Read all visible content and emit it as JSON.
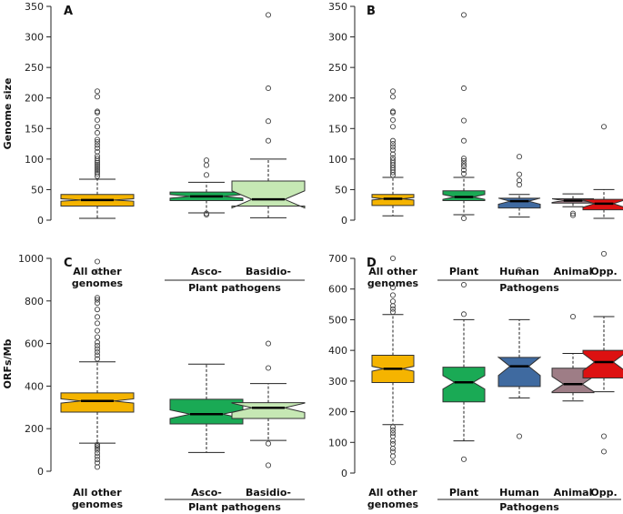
{
  "chart_data": [
    {
      "panel": "A",
      "type": "boxplot",
      "ylabel": "Genome size",
      "ylim": [
        0,
        350
      ],
      "yticks": [
        0,
        50,
        100,
        150,
        200,
        250,
        300,
        350
      ],
      "categories": [
        "All other genomes",
        "Asco-",
        "Basidio-"
      ],
      "category_lines": [
        [
          "All other",
          "genomes"
        ],
        [
          "Asco-"
        ],
        [
          "Basidio-"
        ]
      ],
      "group_label": "Plant pathogens",
      "group_span": [
        1,
        2
      ],
      "boxes": [
        {
          "name": "All other genomes",
          "color": "#f5b400",
          "q1": 23,
          "median": 33,
          "q3": 42,
          "notch": 2,
          "whisker_low": 3,
          "whisker_high": 67,
          "outliers": [
            72,
            76,
            79,
            82,
            85,
            88,
            91,
            94,
            97,
            101,
            105,
            112,
            118,
            123,
            128,
            132,
            143,
            153,
            164,
            176,
            178,
            202,
            211
          ]
        },
        {
          "name": "Asco-",
          "color": "#1aaa55",
          "q1": 32,
          "median": 39,
          "q3": 46,
          "notch": 3,
          "whisker_low": 12,
          "whisker_high": 62,
          "outliers": [
            9,
            11,
            74,
            90,
            98
          ]
        },
        {
          "name": "Basidio-",
          "color": "#c6e8b4",
          "q1": 23,
          "median": 34,
          "q3": 64,
          "notch": 14,
          "whisker_low": 4,
          "whisker_high": 100,
          "outliers": [
            130,
            162,
            216,
            336
          ]
        }
      ]
    },
    {
      "panel": "B",
      "type": "boxplot",
      "ylabel": "",
      "ylim": [
        0,
        350
      ],
      "yticks": [
        0,
        50,
        100,
        150,
        200,
        250,
        300,
        350
      ],
      "categories": [
        "All other genomes",
        "Plant",
        "Human",
        "Animal",
        "Opp."
      ],
      "category_lines": [
        [
          "All other",
          "genomes"
        ],
        [
          "Plant"
        ],
        [
          "Human"
        ],
        [
          "Animal"
        ],
        [
          "Opp."
        ]
      ],
      "group_label": "Pathogens",
      "group_span": [
        1,
        4
      ],
      "boxes": [
        {
          "name": "All other genomes",
          "color": "#f5b400",
          "q1": 24,
          "median": 35,
          "q3": 42,
          "notch": 2,
          "whisker_low": 7,
          "whisker_high": 70,
          "outliers": [
            74,
            78,
            82,
            86,
            90,
            94,
            98,
            102,
            108,
            115,
            120,
            125,
            130,
            153,
            164,
            176,
            178,
            202,
            211
          ]
        },
        {
          "name": "Plant",
          "color": "#1aaa55",
          "q1": 32,
          "median": 38,
          "q3": 48,
          "notch": 4,
          "whisker_low": 9,
          "whisker_high": 70,
          "outliers": [
            3,
            76,
            82,
            88,
            92,
            97,
            101,
            130,
            163,
            216,
            336
          ]
        },
        {
          "name": "Human",
          "color": "#3f6aa0",
          "q1": 20,
          "median": 31,
          "q3": 36,
          "notch": 5,
          "whisker_low": 5,
          "whisker_high": 42,
          "outliers": [
            58,
            65,
            75,
            104
          ]
        },
        {
          "name": "Animal",
          "color": "#9e7d86",
          "q1": 28,
          "median": 32,
          "q3": 35,
          "notch": 3,
          "whisker_low": 22,
          "whisker_high": 43,
          "outliers": [
            8,
            11
          ]
        },
        {
          "name": "Opp.",
          "color": "#dd1111",
          "q1": 17,
          "median": 27,
          "q3": 34,
          "notch": 6,
          "whisker_low": 3,
          "whisker_high": 50,
          "outliers": [
            153
          ]
        }
      ]
    },
    {
      "panel": "C",
      "type": "boxplot",
      "ylabel": "ORFs/Mb",
      "ylim": [
        0,
        1000
      ],
      "yticks": [
        0,
        200,
        400,
        600,
        800,
        1000
      ],
      "categories": [
        "All other genomes",
        "Asco-",
        "Basidio-"
      ],
      "category_lines": [
        [
          "All other",
          "genomes"
        ],
        [
          "Asco-"
        ],
        [
          "Basidio-"
        ]
      ],
      "group_label": "Plant pathogens",
      "group_span": [
        1,
        2
      ],
      "boxes": [
        {
          "name": "All other genomes",
          "color": "#f5b400",
          "q1": 278,
          "median": 330,
          "q3": 368,
          "notch": 10,
          "whisker_low": 132,
          "whisker_high": 514,
          "outliers": [
            20,
            40,
            55,
            70,
            85,
            100,
            110,
            118,
            125,
            528,
            545,
            560,
            575,
            590,
            605,
            630,
            660,
            695,
            725,
            760,
            790,
            805,
            815,
            938,
            985
          ]
        },
        {
          "name": "Asco-",
          "color": "#1aaa55",
          "q1": 222,
          "median": 268,
          "q3": 338,
          "notch": 20,
          "whisker_low": 88,
          "whisker_high": 503,
          "outliers": []
        },
        {
          "name": "Basidio-",
          "color": "#c6e8b4",
          "q1": 248,
          "median": 298,
          "q3": 322,
          "notch": 22,
          "whisker_low": 145,
          "whisker_high": 412,
          "outliers": [
            28,
            130,
            485,
            600
          ]
        }
      ]
    },
    {
      "panel": "D",
      "type": "boxplot",
      "ylabel": "",
      "ylim": [
        0,
        700
      ],
      "yticks": [
        0,
        100,
        200,
        300,
        400,
        500,
        600,
        700
      ],
      "categories": [
        "All other genomes",
        "Plant",
        "Human",
        "Animal",
        "Opp."
      ],
      "category_lines": [
        [
          "All other",
          "genomes"
        ],
        [
          "Plant"
        ],
        [
          "Human"
        ],
        [
          "Animal"
        ],
        [
          "Opp."
        ]
      ],
      "group_label": "Pathogens",
      "group_span": [
        1,
        4
      ],
      "boxes": [
        {
          "name": "All other genomes",
          "color": "#f5b400",
          "q1": 295,
          "median": 340,
          "q3": 384,
          "notch": 8,
          "whisker_low": 158,
          "whisker_high": 517,
          "outliers": [
            35,
            55,
            70,
            80,
            95,
            105,
            120,
            130,
            140,
            150,
            525,
            535,
            545,
            560,
            580,
            605,
            700
          ]
        },
        {
          "name": "Plant",
          "color": "#1aaa55",
          "q1": 232,
          "median": 296,
          "q3": 345,
          "notch": 22,
          "whisker_low": 105,
          "whisker_high": 500,
          "outliers": [
            45,
            518,
            614
          ]
        },
        {
          "name": "Human",
          "color": "#3f6aa0",
          "q1": 282,
          "median": 348,
          "q3": 377,
          "notch": 30,
          "whisker_low": 245,
          "whisker_high": 500,
          "outliers": [
            120,
            662
          ]
        },
        {
          "name": "Animal",
          "color": "#9e7d86",
          "q1": 262,
          "median": 290,
          "q3": 342,
          "notch": 25,
          "whisker_low": 235,
          "whisker_high": 390,
          "outliers": [
            510
          ]
        },
        {
          "name": "Opp.",
          "color": "#dd1111",
          "q1": 310,
          "median": 362,
          "q3": 400,
          "notch": 28,
          "whisker_low": 265,
          "whisker_high": 510,
          "outliers": [
            70,
            120,
            715
          ]
        }
      ]
    }
  ]
}
